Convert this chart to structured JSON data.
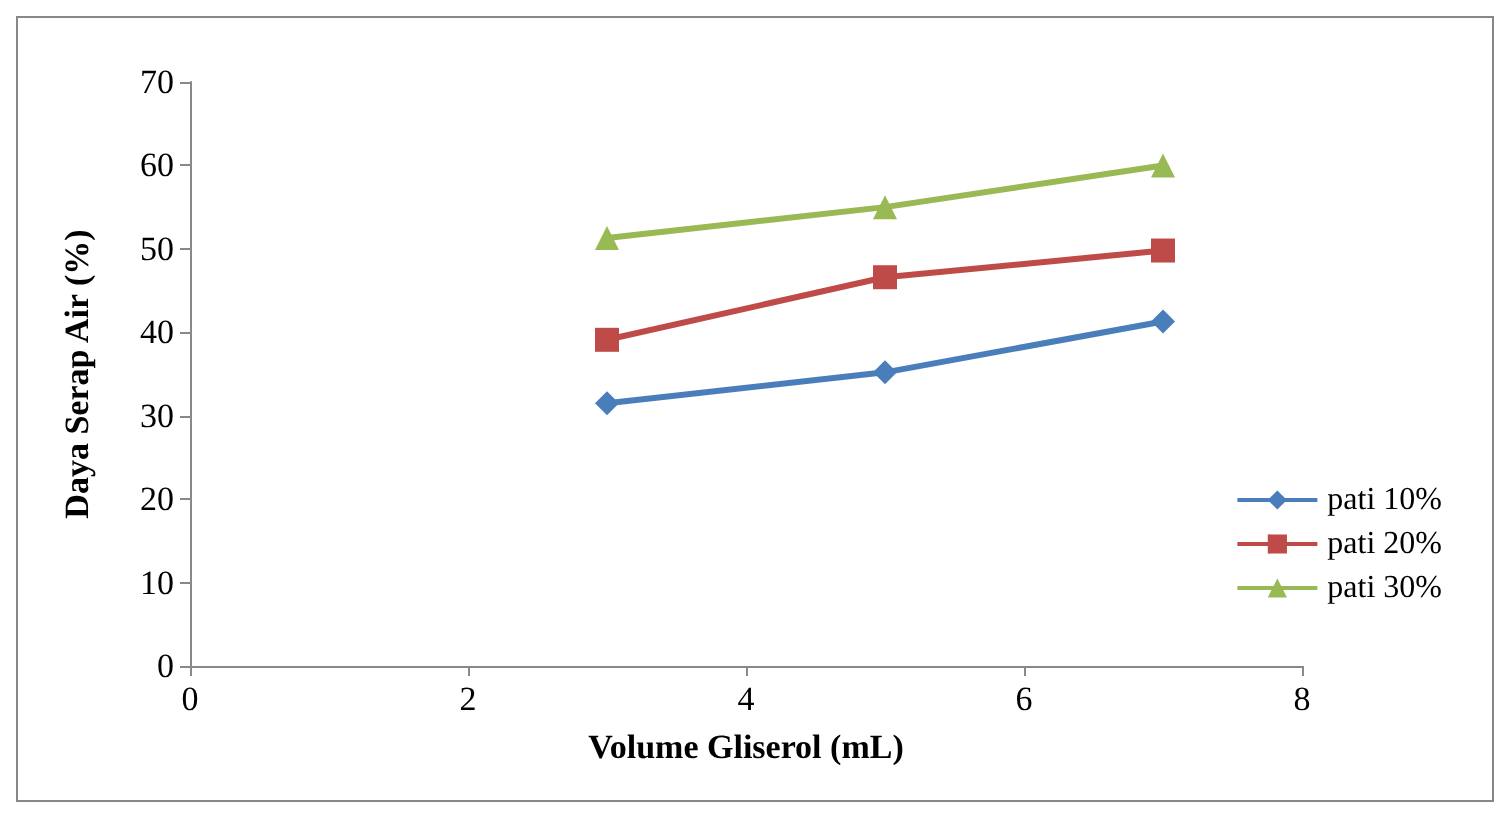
{
  "chart_data": {
    "type": "line",
    "xlabel": "Volume Gliserol (mL)",
    "ylabel": "Daya Serap Air (%)",
    "x": [
      3,
      5,
      7
    ],
    "series": [
      {
        "name": "pati 10%",
        "color": "#4a7ebb",
        "marker": "diamond",
        "values": [
          31.5,
          35.2,
          41.3
        ]
      },
      {
        "name": "pati 20%",
        "color": "#be4b48",
        "marker": "square",
        "values": [
          39.1,
          46.6,
          49.8
        ]
      },
      {
        "name": "pati 30%",
        "color": "#98b954",
        "marker": "triangle",
        "values": [
          51.3,
          55,
          60
        ]
      }
    ],
    "xlim": [
      0,
      8
    ],
    "xticks": [
      0,
      2,
      4,
      6,
      8
    ],
    "ylim": [
      0,
      70
    ],
    "yticks": [
      0,
      10,
      20,
      30,
      40,
      50,
      60,
      70
    ],
    "grid": false,
    "legend": "right",
    "line_style": "solid"
  }
}
